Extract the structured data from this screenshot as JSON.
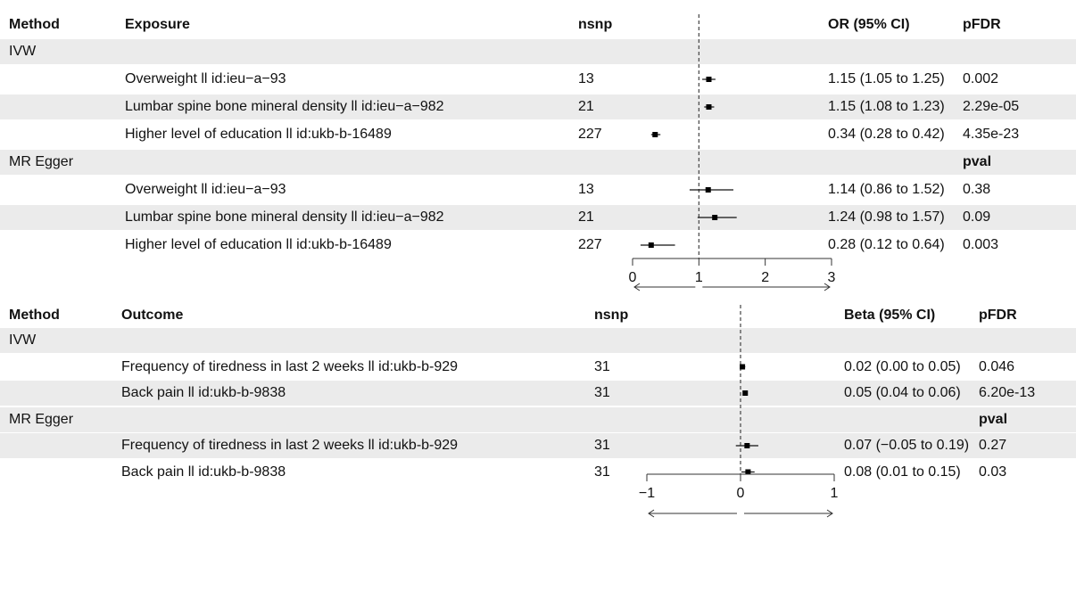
{
  "chart_data": [
    {
      "type": "forest",
      "headers": {
        "method": "Method",
        "label": "Exposure",
        "nsnp": "nsnp",
        "estimate": "OR (95% CI)",
        "p": "pFDR"
      },
      "groups": [
        {
          "method": "IVW",
          "p_header": "",
          "rows": [
            {
              "label": "Overweight ll id:ieu−a−93",
              "nsnp": "13",
              "est": 1.15,
              "lo": 1.05,
              "hi": 1.25,
              "text": "1.15 (1.05 to 1.25)",
              "p": "0.002"
            },
            {
              "label": "Lumbar spine bone mineral density ll id:ieu−a−982",
              "nsnp": "21",
              "est": 1.15,
              "lo": 1.08,
              "hi": 1.23,
              "text": "1.15 (1.08 to 1.23)",
              "p": "2.29e-05"
            },
            {
              "label": "Higher level of education ll id:ukb-b-16489",
              "nsnp": "227",
              "est": 0.34,
              "lo": 0.28,
              "hi": 0.42,
              "text": "0.34 (0.28 to 0.42)",
              "p": "4.35e-23"
            }
          ]
        },
        {
          "method": "MR Egger",
          "p_header": "pval",
          "rows": [
            {
              "label": "Overweight ll id:ieu−a−93",
              "nsnp": "13",
              "est": 1.14,
              "lo": 0.86,
              "hi": 1.52,
              "text": "1.14 (0.86 to 1.52)",
              "p": "0.38"
            },
            {
              "label": "Lumbar spine bone mineral density ll id:ieu−a−982",
              "nsnp": "21",
              "est": 1.24,
              "lo": 0.98,
              "hi": 1.57,
              "text": "1.24 (0.98 to 1.57)",
              "p": "0.09"
            },
            {
              "label": "Higher level of education ll id:ukb-b-16489",
              "nsnp": "227",
              "est": 0.28,
              "lo": 0.12,
              "hi": 0.64,
              "text": "0.28 (0.12 to 0.64)",
              "p": "0.003"
            }
          ]
        }
      ],
      "xlim": [
        0,
        3
      ],
      "ticks": [
        "0",
        "1",
        "2",
        "3"
      ],
      "ref_line": 1
    },
    {
      "type": "forest",
      "headers": {
        "method": "Method",
        "label": "Outcome",
        "nsnp": "nsnp",
        "estimate": "Beta (95% CI)",
        "p": "pFDR"
      },
      "groups": [
        {
          "method": "IVW",
          "p_header": "",
          "rows": [
            {
              "label": "Frequency of tiredness in last 2 weeks ll id:ukb-b-929",
              "nsnp": "31",
              "est": 0.02,
              "lo": 0.0,
              "hi": 0.05,
              "text": "0.02 (0.00 to 0.05)",
              "p": "0.046"
            },
            {
              "label": "Back pain ll id:ukb-b-9838",
              "nsnp": "31",
              "est": 0.05,
              "lo": 0.04,
              "hi": 0.06,
              "text": "0.05 (0.04 to 0.06)",
              "p": "6.20e-13"
            }
          ]
        },
        {
          "method": "MR Egger",
          "p_header": "pval",
          "rows": [
            {
              "label": "Frequency of tiredness in last 2 weeks ll id:ukb-b-929",
              "nsnp": "31",
              "est": 0.07,
              "lo": -0.05,
              "hi": 0.19,
              "text": "0.07 (−0.05 to 0.19)",
              "p": "0.27"
            },
            {
              "label": "Back pain ll id:ukb-b-9838",
              "nsnp": "31",
              "est": 0.08,
              "lo": 0.01,
              "hi": 0.15,
              "text": "0.08 (0.01 to 0.15)",
              "p": "0.03"
            }
          ]
        }
      ],
      "xlim": [
        -1,
        1
      ],
      "ticks": [
        "−1",
        "0",
        "1"
      ],
      "ref_line": 0
    }
  ]
}
